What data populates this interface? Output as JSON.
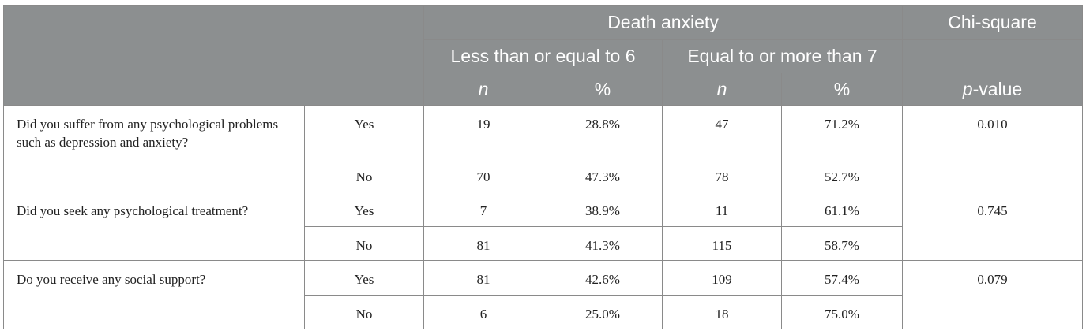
{
  "header": {
    "group_label": "Death anxiety",
    "test_label": "Chi-square",
    "sub_low": "Less than or equal to 6",
    "sub_high": "Equal to or more than 7",
    "col_n": "n",
    "col_pct": "%",
    "col_p_italic": "p",
    "col_p_rest": "-value"
  },
  "rows": [
    {
      "question": "Did you suffer from any psychological problems such as depression and anxiety?",
      "p_value": "0.010",
      "answers": [
        {
          "label": "Yes",
          "n_low": "19",
          "pct_low": "28.8%",
          "n_high": "47",
          "pct_high": "71.2%"
        },
        {
          "label": "No",
          "n_low": "70",
          "pct_low": "47.3%",
          "n_high": "78",
          "pct_high": "52.7%"
        }
      ]
    },
    {
      "question": "Did you seek any psychological treatment?",
      "p_value": "0.745",
      "answers": [
        {
          "label": "Yes",
          "n_low": "7",
          "pct_low": "38.9%",
          "n_high": "11",
          "pct_high": "61.1%"
        },
        {
          "label": "No",
          "n_low": "81",
          "pct_low": "41.3%",
          "n_high": "115",
          "pct_high": "58.7%"
        }
      ]
    },
    {
      "question": "Do you receive any social support?",
      "p_value": "0.079",
      "answers": [
        {
          "label": "Yes",
          "n_low": "81",
          "pct_low": "42.6%",
          "n_high": "109",
          "pct_high": "57.4%"
        },
        {
          "label": "No",
          "n_low": "6",
          "pct_low": "25.0%",
          "n_high": "18",
          "pct_high": "75.0%"
        }
      ]
    }
  ]
}
